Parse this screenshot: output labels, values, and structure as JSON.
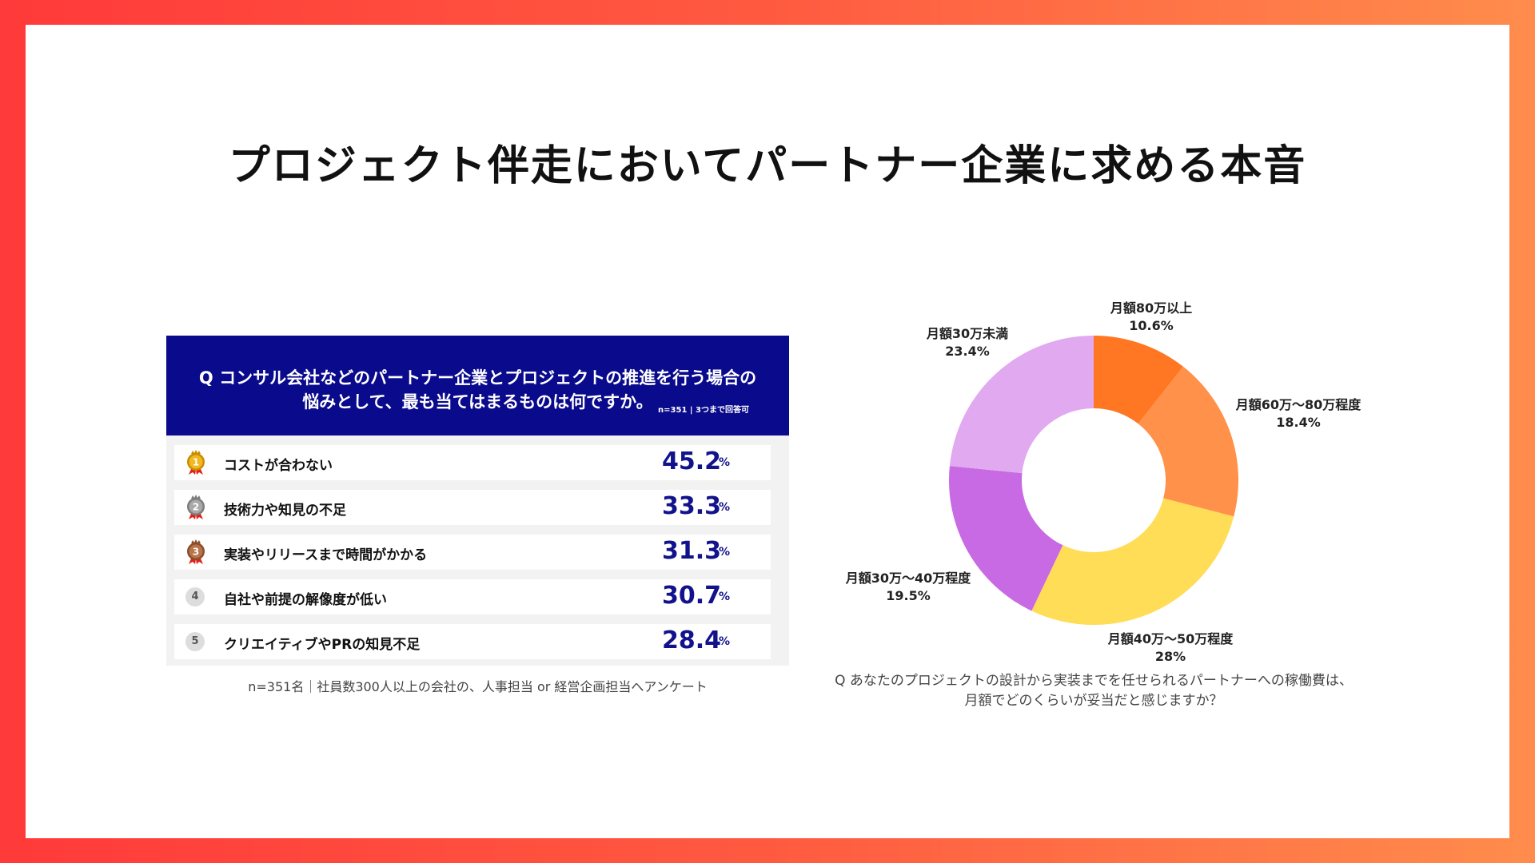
{
  "title": "プロジェクト伴走においてパートナー企業に求める本音",
  "left": {
    "question_line1": "Q コンサル会社などのパートナー企業とプロジェクトの推進を行う場合の",
    "question_line2": "悩みとして、最も当てはまるものは何ですか。",
    "note": "n=351 | 3つまで回答可",
    "rows": [
      {
        "rank": "1",
        "label": "コストが合わない",
        "value": "45.2",
        "unit": "%",
        "icon": "gold-medal-icon"
      },
      {
        "rank": "2",
        "label": "技術力や知見の不足",
        "value": "33.3",
        "unit": "%",
        "icon": "silver-medal-icon"
      },
      {
        "rank": "3",
        "label": "実装やリリースまで時間がかかる",
        "value": "31.3",
        "unit": "%",
        "icon": "bronze-medal-icon"
      },
      {
        "rank": "4",
        "label": "自社や前提の解像度が低い",
        "value": "30.7",
        "unit": "%"
      },
      {
        "rank": "5",
        "label": "クリエイティブやPRの知見不足",
        "value": "28.4",
        "unit": "%"
      }
    ],
    "footnote": "n=351名｜社員数300人以上の会社の、人事担当 or 経営企画担当へアンケート"
  },
  "chart_data": {
    "type": "pie",
    "donut": true,
    "categories": [
      "月額80万以上",
      "月額60万〜80万程度",
      "月額40万〜50万程度",
      "月額30万〜40万程度",
      "月額30万未満"
    ],
    "values": [
      10.6,
      18.4,
      28,
      19.5,
      23.4
    ],
    "value_labels": [
      "10.6%",
      "18.4%",
      "28%",
      "19.5%",
      "23.4%"
    ],
    "colors": [
      "#FF7722",
      "#FF914A",
      "#FFDD57",
      "#C86AE3",
      "#E1A9EF"
    ],
    "caption_line1": "Q あなたのプロジェクトの設計から実装までを任せられるパートナーへの稼働費は、",
    "caption_line2": "月額でどのくらいが妥当だと感じますか？"
  }
}
